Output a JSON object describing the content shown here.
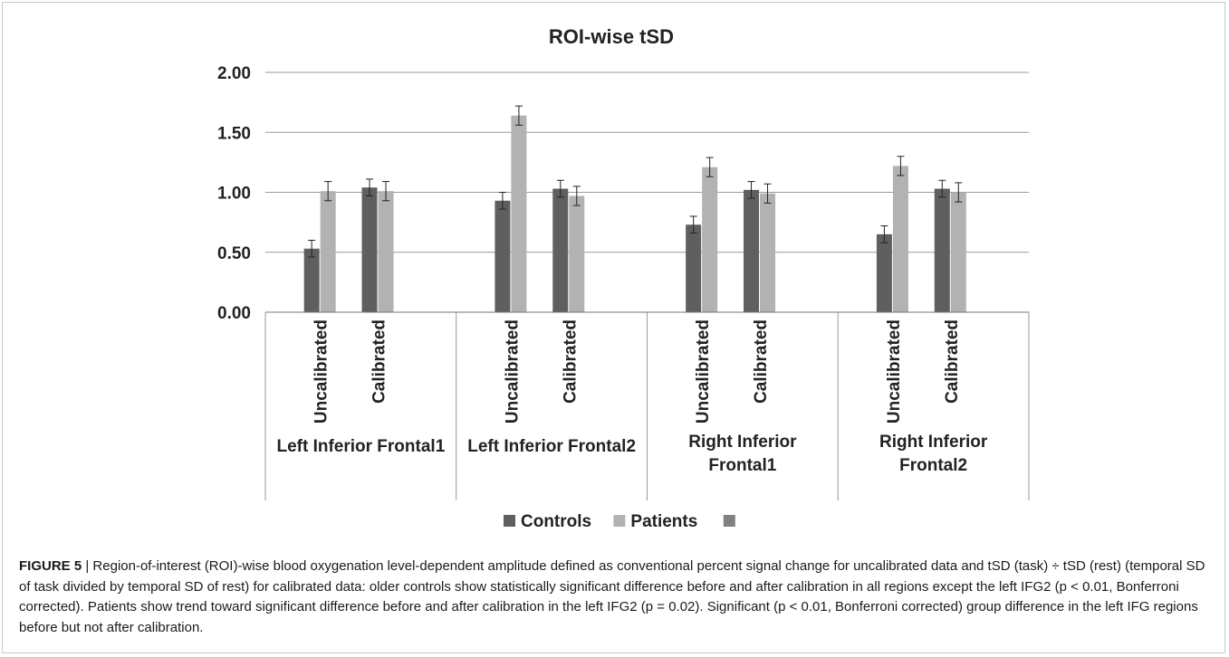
{
  "chart_data": {
    "type": "bar",
    "title": "ROI-wise tSD",
    "ylim": [
      0,
      2
    ],
    "yticks": [
      "0.00",
      "0.50",
      "1.00",
      "1.50",
      "2.00"
    ],
    "ytick_values": [
      0,
      0.5,
      1.0,
      1.5,
      2.0
    ],
    "grid": true,
    "legend_placement": "bottom",
    "groups": [
      {
        "label": "Left Inferior Frontal1",
        "label_lines": [
          "Left Inferior Frontal1"
        ]
      },
      {
        "label": "Left Inferior Frontal2",
        "label_lines": [
          "Left Inferior Frontal2"
        ]
      },
      {
        "label": "Right Inferior Frontal1",
        "label_lines": [
          "Right Inferior",
          "Frontal1"
        ]
      },
      {
        "label": "Right Inferior Frontal2",
        "label_lines": [
          "Right Inferior",
          "Frontal2"
        ]
      }
    ],
    "subcategories": [
      "Uncalibrated",
      "Calibrated"
    ],
    "series": [
      {
        "name": "Controls",
        "color": "#5f5f5f",
        "values": [
          0.53,
          1.04,
          0.93,
          1.03,
          0.73,
          1.02,
          0.65,
          1.03
        ],
        "errors": [
          0.07,
          0.07,
          0.07,
          0.07,
          0.07,
          0.07,
          0.07,
          0.07
        ]
      },
      {
        "name": "Patients",
        "color": "#b2b2b2",
        "values": [
          1.01,
          1.01,
          1.64,
          0.97,
          1.21,
          0.99,
          1.22,
          1.0
        ],
        "errors": [
          0.08,
          0.08,
          0.08,
          0.08,
          0.08,
          0.08,
          0.08,
          0.08
        ]
      }
    ],
    "legend": [
      {
        "name": "Controls",
        "color": "#5f5f5f"
      },
      {
        "name": "Patients",
        "color": "#b2b2b2"
      },
      {
        "name": "",
        "color": "#808080"
      }
    ]
  },
  "caption": {
    "label": "FIGURE 5",
    "separator": " | ",
    "text": "Region-of-interest (ROI)-wise blood oxygenation level-dependent amplitude defined as conventional percent signal change for uncalibrated data and tSD (task) ÷ tSD (rest) (temporal SD of task divided by temporal SD of rest) for calibrated data: older controls show statistically significant difference before and after calibration in all regions except the left IFG2 (p < 0.01, Bonferroni corrected). Patients show trend toward significant difference before and after calibration in the left IFG2 (p = 0.02). Significant (p < 0.01, Bonferroni corrected) group difference in the left IFG regions before but not after calibration."
  }
}
